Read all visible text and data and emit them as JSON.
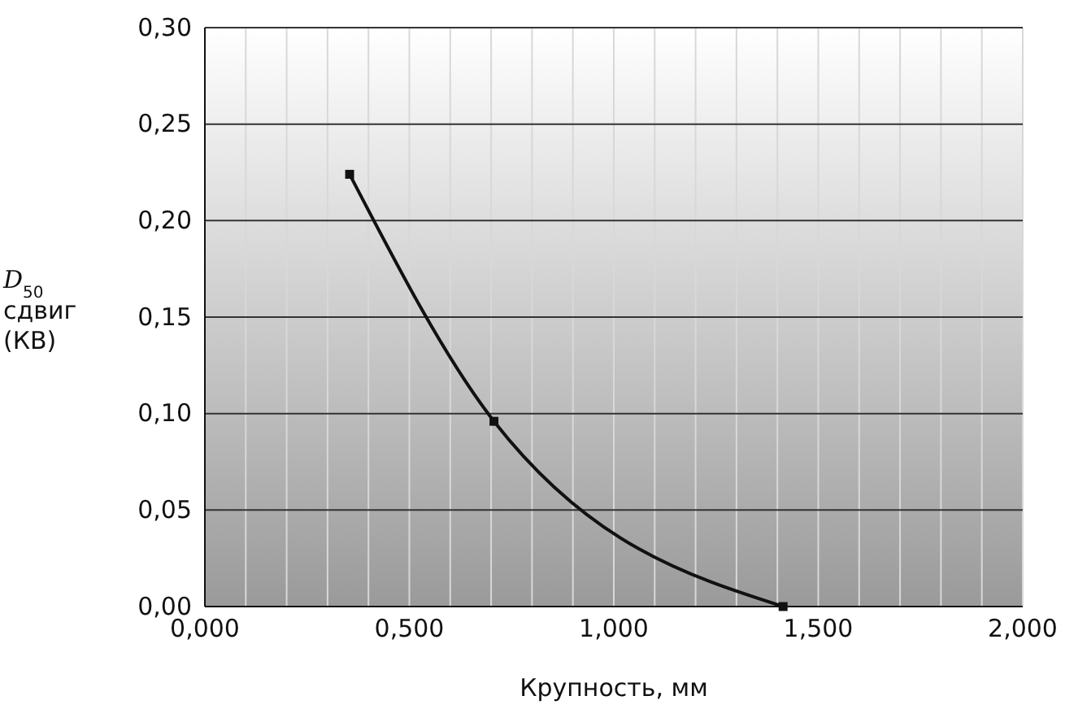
{
  "chart_data": {
    "type": "line",
    "xlabel": "Крупность, мм",
    "ylabel": "D$_{50}$ сдвиг (КВ)",
    "x": [
      0.354,
      0.707,
      1.414
    ],
    "series": [
      {
        "color": "#111111",
        "values": [
          0.224,
          0.096,
          0.0
        ]
      }
    ],
    "xlim": [
      0,
      2
    ],
    "xticks": [
      {
        "value": 0,
        "label": "0,000"
      },
      {
        "value": 0.1,
        "label": null
      },
      {
        "value": 0.2,
        "label": null
      },
      {
        "value": 0.3,
        "label": null
      },
      {
        "value": 0.4,
        "label": null
      },
      {
        "value": 0.5,
        "label": "0,500"
      },
      {
        "value": 0.6,
        "label": null
      },
      {
        "value": 0.7,
        "label": null
      },
      {
        "value": 0.8,
        "label": null
      },
      {
        "value": 0.9,
        "label": null
      },
      {
        "value": 1,
        "label": "1,000"
      },
      {
        "value": 1.1,
        "label": null
      },
      {
        "value": 1.2,
        "label": null
      },
      {
        "value": 1.3,
        "label": null
      },
      {
        "value": 1.4,
        "label": null
      },
      {
        "value": 1.5,
        "label": "1,500"
      },
      {
        "value": 1.6,
        "label": null
      },
      {
        "value": 1.7,
        "label": null
      },
      {
        "value": 1.8,
        "label": null
      },
      {
        "value": 1.9,
        "label": null
      },
      {
        "value": 2,
        "label": "2,000"
      }
    ],
    "ylim": [
      0,
      0.3
    ],
    "yticks": [
      {
        "value": 0,
        "label": "0,00"
      },
      {
        "value": 0.05,
        "label": "0,05"
      },
      {
        "value": 0.1,
        "label": "0,10"
      },
      {
        "value": 0.15,
        "label": "0,15"
      },
      {
        "value": 0.2,
        "label": "0,20"
      },
      {
        "value": 0.25,
        "label": "0,25"
      },
      {
        "value": 0.3,
        "label": "0,30"
      }
    ],
    "grid": true,
    "marker": "square",
    "line_style": "solid"
  }
}
